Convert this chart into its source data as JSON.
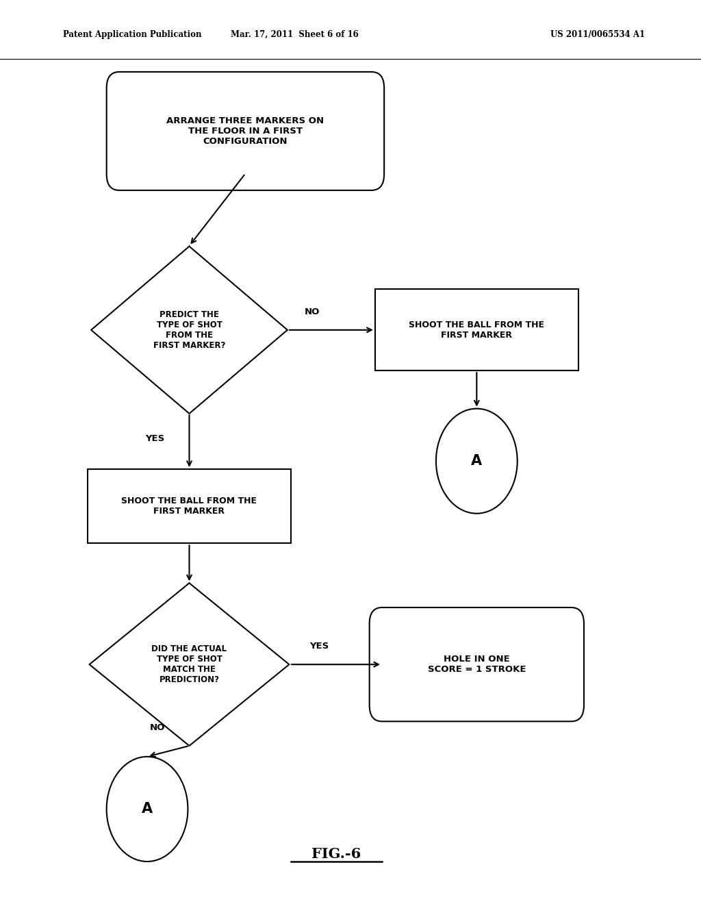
{
  "bg_color": "#ffffff",
  "text_color": "#000000",
  "line_color": "#000000",
  "header_left": "Patent Application Publication",
  "header_mid": "Mar. 17, 2011  Sheet 6 of 16",
  "header_right": "US 2011/0065534 A1",
  "fig_label": "FIG.-6"
}
